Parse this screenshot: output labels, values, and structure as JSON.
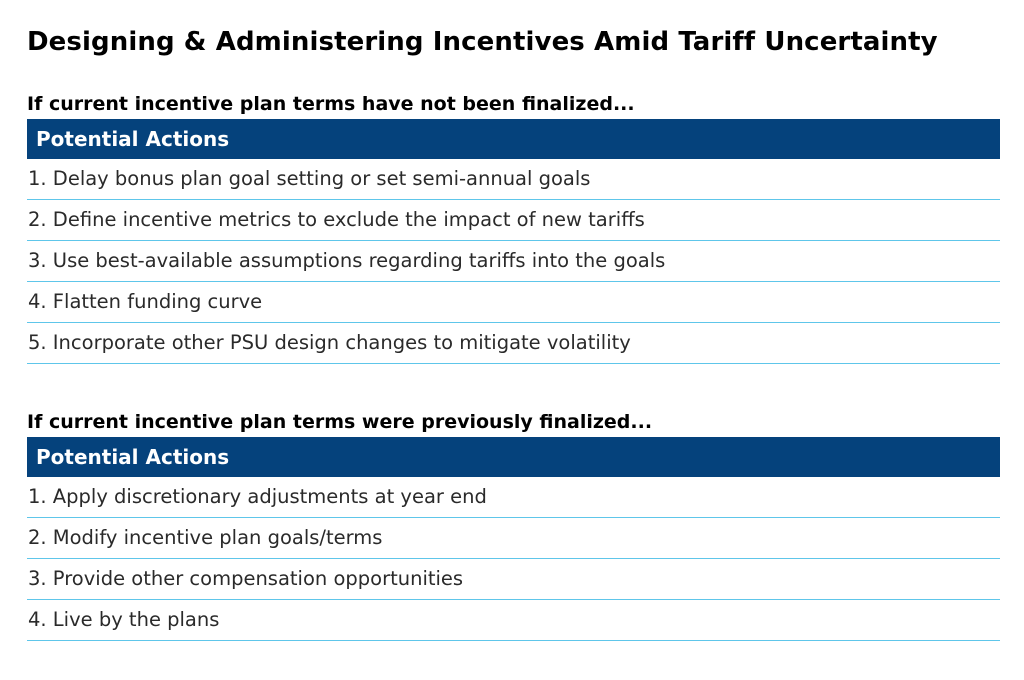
{
  "title": "Designing & Administering Incentives Amid Tariff Uncertainty",
  "sections": [
    {
      "heading": "If current incentive plan terms have not been finalized...",
      "table_header": "Potential Actions",
      "actions": [
        "1. Delay bonus plan goal setting or set semi-annual goals",
        "2. Define incentive metrics to exclude the impact of new tariffs",
        "3. Use best-available assumptions regarding tariffs into the goals",
        "4. Flatten funding curve",
        "5. Incorporate other PSU design changes to mitigate volatility"
      ]
    },
    {
      "heading": "If current incentive plan terms were previously finalized...",
      "table_header": "Potential Actions",
      "actions": [
        "1. Apply discretionary adjustments at year end",
        "2. Modify incentive plan goals/terms",
        "3. Provide other compensation opportunities",
        "4. Live by the plans"
      ]
    }
  ],
  "colors": {
    "header_background": "#05427c",
    "header_text": "#ffffff",
    "row_divider": "#5ec6ea"
  }
}
